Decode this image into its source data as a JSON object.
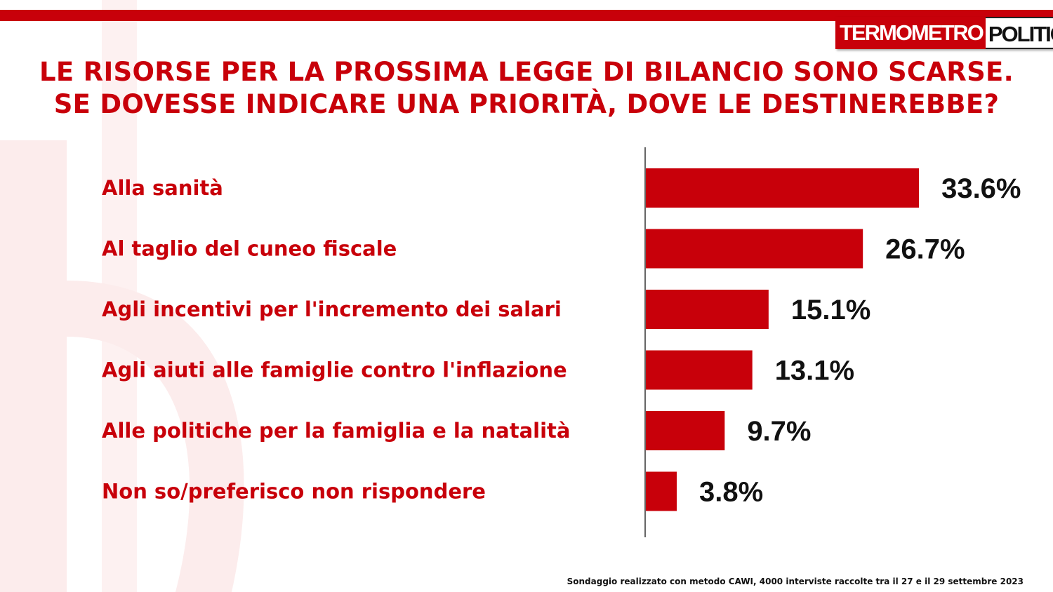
{
  "brand": {
    "logo_part1": "TERMOMETRO",
    "logo_part2": "POLITICO"
  },
  "colors": {
    "accent": "#c8000a",
    "text": "#111111",
    "background": "#ffffff"
  },
  "title": {
    "line1": "LE RISORSE PER LA PROSSIMA LEGGE DI BILANCIO SONO SCARSE.",
    "line2": "SE DOVESSE INDICARE UNA PRIORITÀ, DOVE LE DESTINEREBBE?"
  },
  "footnote": "Sondaggio realizzato con metodo CAWI, 4000 interviste raccolte tra il 27 e il 29 settembre 2023",
  "chart_data": {
    "type": "bar",
    "orientation": "horizontal",
    "categories": [
      "Alla sanità",
      "Al taglio del cuneo fiscale",
      "Agli incentivi per l'incremento dei salari",
      "Agli aiuti alle famiglie contro l'inflazione",
      "Alle politiche per la famiglia e la natalità",
      "Non so/preferisco non rispondere"
    ],
    "values": [
      33.6,
      26.7,
      15.1,
      13.1,
      9.7,
      3.8
    ],
    "value_labels": [
      "33.6%",
      "26.7%",
      "15.1%",
      "13.1%",
      "9.7%",
      "3.8%"
    ],
    "unit": "%",
    "bar_color": "#c8000a",
    "xlim": [
      0,
      50
    ],
    "grid": false,
    "legend": "none"
  }
}
